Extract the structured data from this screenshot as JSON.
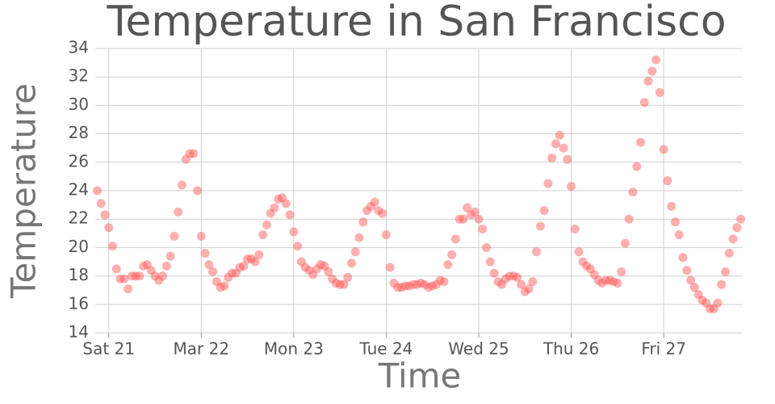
{
  "chart_data": {
    "type": "scatter",
    "title": "Temperature in San Francisco",
    "x_label": "Time",
    "y_label": "Temperature",
    "color": "#ff4d4d",
    "grid": true,
    "xlim": [
      -3.5,
      164.5
    ],
    "ylim": [
      14,
      34
    ],
    "xticks": [
      {
        "value": 0,
        "label": "Sat 21"
      },
      {
        "value": 24,
        "label": "Mar 22"
      },
      {
        "value": 48,
        "label": "Mon 23"
      },
      {
        "value": 72,
        "label": "Tue 24"
      },
      {
        "value": 96,
        "label": "Wed 25"
      },
      {
        "value": 120,
        "label": "Thu 26"
      },
      {
        "value": 144,
        "label": "Fri 27"
      }
    ],
    "yticks": [
      14,
      16,
      18,
      20,
      22,
      24,
      26,
      28,
      30,
      32,
      34
    ],
    "x": [
      -3,
      -2,
      -1,
      0,
      1,
      2,
      3,
      4,
      5,
      6,
      7,
      8,
      9,
      10,
      11,
      12,
      13,
      14,
      15,
      16,
      17,
      18,
      19,
      20,
      21,
      22,
      23,
      24,
      25,
      26,
      27,
      28,
      29,
      30,
      31,
      32,
      33,
      34,
      35,
      36,
      37,
      38,
      39,
      40,
      41,
      42,
      43,
      44,
      45,
      46,
      47,
      48,
      49,
      50,
      51,
      52,
      53,
      54,
      55,
      56,
      57,
      58,
      59,
      60,
      61,
      62,
      63,
      64,
      65,
      66,
      67,
      68,
      69,
      70,
      71,
      72,
      73,
      74,
      75,
      76,
      77,
      78,
      79,
      80,
      81,
      82,
      83,
      84,
      85,
      86,
      87,
      88,
      89,
      90,
      91,
      92,
      93,
      94,
      95,
      96,
      97,
      98,
      99,
      100,
      101,
      102,
      103,
      104,
      105,
      106,
      107,
      108,
      109,
      110,
      111,
      112,
      113,
      114,
      115,
      116,
      117,
      118,
      119,
      120,
      121,
      122,
      123,
      124,
      125,
      126,
      127,
      128,
      129,
      130,
      131,
      132,
      133,
      134,
      135,
      136,
      137,
      138,
      139,
      140,
      141,
      142,
      143,
      144,
      145,
      146,
      147,
      148,
      149,
      150,
      151,
      152,
      153,
      154,
      155,
      156,
      157,
      158,
      159,
      160,
      161,
      162,
      163,
      164
    ],
    "values": [
      24.0,
      23.1,
      22.3,
      21.4,
      20.1,
      18.5,
      17.8,
      17.8,
      17.1,
      18.0,
      18.0,
      18.0,
      18.7,
      18.8,
      18.4,
      18.0,
      17.7,
      18.0,
      18.7,
      19.4,
      20.8,
      22.5,
      24.4,
      26.2,
      26.6,
      26.6,
      24.0,
      20.8,
      19.6,
      18.8,
      18.3,
      17.6,
      17.2,
      17.3,
      17.9,
      18.2,
      18.2,
      18.6,
      18.7,
      19.2,
      19.2,
      19.0,
      19.5,
      20.9,
      21.6,
      22.4,
      22.8,
      23.4,
      23.5,
      23.1,
      22.3,
      21.1,
      20.1,
      19.0,
      18.6,
      18.4,
      18.1,
      18.5,
      18.8,
      18.7,
      18.3,
      17.8,
      17.5,
      17.4,
      17.4,
      17.9,
      18.9,
      19.7,
      20.7,
      21.8,
      22.6,
      22.9,
      23.2,
      22.6,
      22.4,
      20.9,
      18.6,
      17.5,
      17.2,
      17.2,
      17.3,
      17.3,
      17.4,
      17.4,
      17.5,
      17.4,
      17.2,
      17.3,
      17.4,
      17.7,
      17.6,
      18.8,
      19.5,
      20.6,
      22.0,
      22.0,
      22.8,
      22.3,
      22.5,
      22.0,
      21.3,
      20.0,
      19.0,
      18.2,
      17.6,
      17.4,
      17.8,
      18.0,
      18.0,
      17.9,
      17.4,
      16.9,
      17.1,
      17.6,
      19.7,
      21.5,
      22.6,
      24.5,
      26.3,
      27.3,
      27.9,
      27.0,
      26.2,
      24.3,
      21.3,
      19.7,
      19.0,
      18.7,
      18.5,
      18.1,
      17.7,
      17.5,
      17.7,
      17.7,
      17.6,
      17.5,
      18.3,
      20.3,
      22.0,
      23.9,
      25.7,
      27.4,
      30.2,
      31.7,
      32.4,
      33.2,
      30.9,
      26.9,
      24.7,
      22.9,
      21.8,
      20.9,
      19.3,
      18.4,
      17.7,
      17.2,
      16.7,
      16.3,
      16.1,
      15.7,
      15.7,
      16.1,
      17.4,
      18.3,
      19.6,
      20.6,
      21.4,
      22.0
    ]
  }
}
